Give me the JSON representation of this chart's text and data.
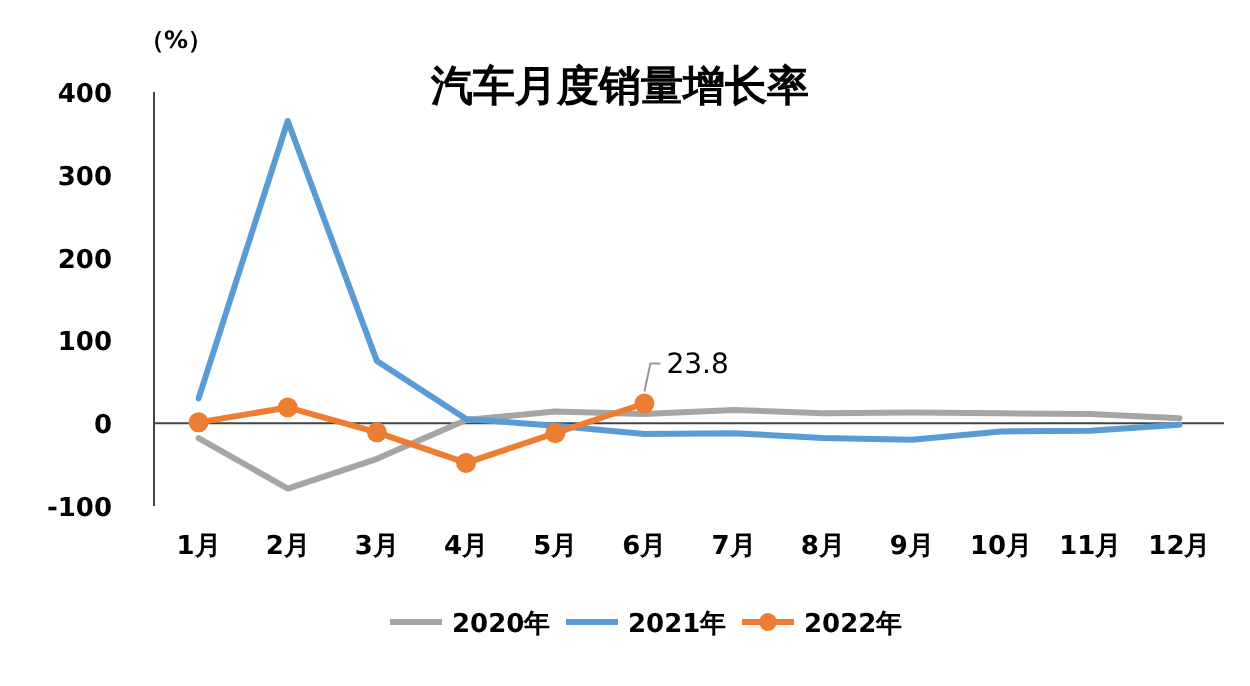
{
  "chart_data": {
    "type": "line",
    "title": "汽车月度销量增长率",
    "ylabel": "（%）",
    "categories": [
      "1月",
      "2月",
      "3月",
      "4月",
      "5月",
      "6月",
      "7月",
      "8月",
      "9月",
      "10月",
      "11月",
      "12月"
    ],
    "ylim": [
      -100,
      400
    ],
    "yticks": [
      -100,
      0,
      100,
      200,
      300,
      400
    ],
    "legend": "bottom",
    "series": [
      {
        "name": "2020年",
        "color": "#a5a5a5",
        "marker": "none",
        "values": [
          -18,
          -79,
          -43,
          4,
          14,
          11,
          16,
          12,
          13,
          12,
          11,
          6
        ]
      },
      {
        "name": "2021年",
        "color": "#5b9bd5",
        "marker": "none",
        "values": [
          30,
          365,
          75,
          5,
          -3,
          -13,
          -12,
          -18,
          -20,
          -10,
          -9,
          -2
        ]
      },
      {
        "name": "2022年",
        "color": "#ed7d31",
        "marker": "circle",
        "values": [
          1,
          19,
          -11,
          -48,
          -12,
          23.8,
          null,
          null,
          null,
          null,
          null,
          null
        ],
        "value_labels": [
          null,
          null,
          null,
          null,
          null,
          "23.8",
          null,
          null,
          null,
          null,
          null,
          null
        ]
      }
    ]
  }
}
